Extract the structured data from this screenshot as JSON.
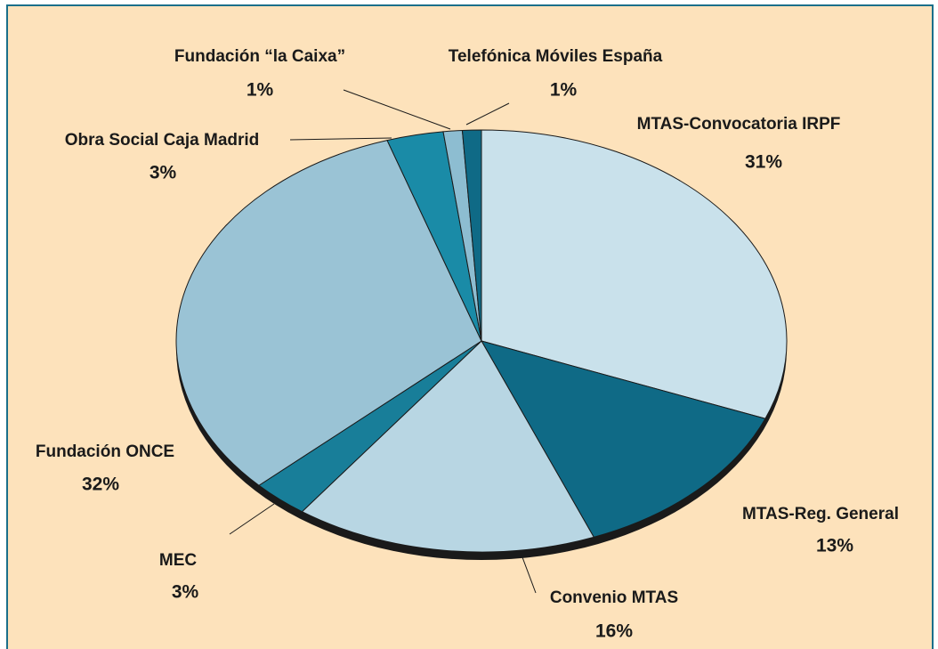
{
  "chart_data": {
    "type": "pie",
    "categories": [
      "MTAS-Convocatoria IRPF",
      "MTAS-Reg. General",
      "Convenio MTAS",
      "MEC",
      "Fundación ONCE",
      "Obra Social Caja Madrid",
      "Fundación “la Caixa”",
      "Telefónica Móviles España"
    ],
    "values": [
      31,
      13,
      16,
      3,
      32,
      3,
      1,
      1
    ],
    "value_labels": [
      "31%",
      "13%",
      "16%",
      "3%",
      "32%",
      "3%",
      "1%",
      "1%"
    ],
    "colors": [
      "#c9e1eb",
      "#0f6a86",
      "#b8d6e3",
      "#187e99",
      "#9ac3d5",
      "#1a8ba7",
      "#8dbdd1",
      "#0f6a86"
    ]
  }
}
